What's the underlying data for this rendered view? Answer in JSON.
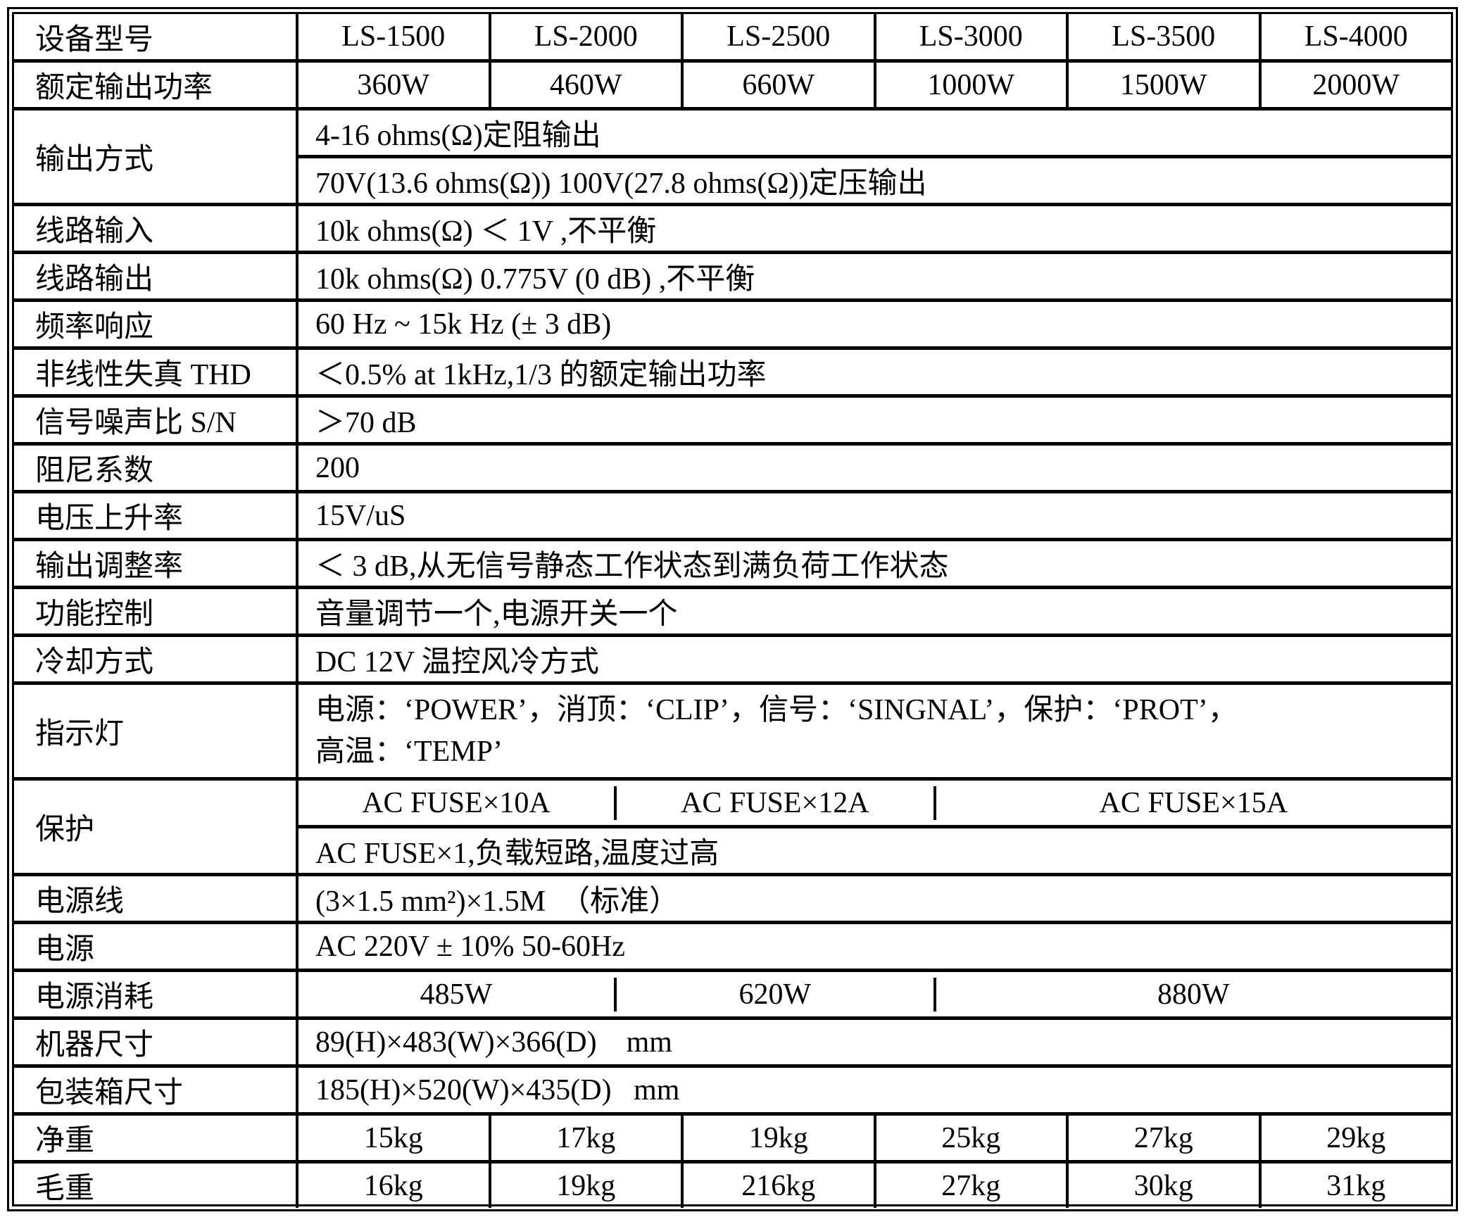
{
  "models_row": {
    "label": "设备型号",
    "values": [
      "LS-1500",
      "LS-2000",
      "LS-2500",
      "LS-3000",
      "LS-3500",
      "LS-4000"
    ]
  },
  "rated_power": {
    "label": "额定输出功率",
    "values": [
      "360W",
      "460W",
      "660W",
      "1000W",
      "1500W",
      "2000W"
    ]
  },
  "output_mode": {
    "label": "输出方式",
    "line1": "4-16 ohms(Ω)定阻输出",
    "line2": "70V(13.6 ohms(Ω)) 100V(27.8 ohms(Ω))定压输出"
  },
  "line_input": {
    "label": "线路输入",
    "value": "10k ohms(Ω) ＜ 1V ,不平衡"
  },
  "line_output": {
    "label": "线路输出",
    "value": "10k ohms(Ω) 0.775V (0 dB) ,不平衡"
  },
  "freq_response": {
    "label": "频率响应",
    "value": "60 Hz ~ 15k Hz (± 3 dB)"
  },
  "thd": {
    "label": "非线性失真 THD",
    "value": "＜0.5% at 1kHz,1/3 的额定输出功率"
  },
  "snr": {
    "label": "信号噪声比 S/N",
    "value": "＞70 dB"
  },
  "damping": {
    "label": "阻尼系数",
    "value": "200"
  },
  "slew_rate": {
    "label": "电压上升率",
    "value": "15V/uS"
  },
  "regulation": {
    "label": "输出调整率",
    "value": "＜ 3 dB,从无信号静态工作状态到满负荷工作状态"
  },
  "controls": {
    "label": "功能控制",
    "value": "音量调节一个,电源开关一个"
  },
  "cooling": {
    "label": "冷却方式",
    "value": "DC 12V 温控风冷方式"
  },
  "indicators": {
    "label": "指示灯",
    "line1": "电源：‘POWER’，消顶：‘CLIP’，信号：‘SINGNAL’，保护：‘PROT’，",
    "line2": "高温：‘TEMP’"
  },
  "protection": {
    "label": "保护",
    "fuses": [
      "AC FUSE×10A",
      "AC FUSE×12A",
      "AC FUSE×15A"
    ],
    "line2": "AC FUSE×1,负载短路,温度过高"
  },
  "power_cord": {
    "label": "电源线",
    "value": "(3×1.5 mm²)×1.5M  （标准）"
  },
  "power_supply": {
    "label": "电源",
    "value": "AC 220V ± 10% 50-60Hz"
  },
  "power_consumption": {
    "label": "电源消耗",
    "values": [
      "485W",
      "620W",
      "880W"
    ]
  },
  "unit_size": {
    "label": "机器尺寸",
    "value": "89(H)×483(W)×366(D)    mm"
  },
  "carton_size": {
    "label": "包装箱尺寸",
    "value": "185(H)×520(W)×435(D)   mm"
  },
  "net_weight": {
    "label": "净重",
    "values": [
      "15kg",
      "17kg",
      "19kg",
      "25kg",
      "27kg",
      "29kg"
    ]
  },
  "gross_weight": {
    "label": "毛重",
    "values": [
      "16kg",
      "19kg",
      "216kg",
      "27kg",
      "30kg",
      "31kg"
    ]
  }
}
